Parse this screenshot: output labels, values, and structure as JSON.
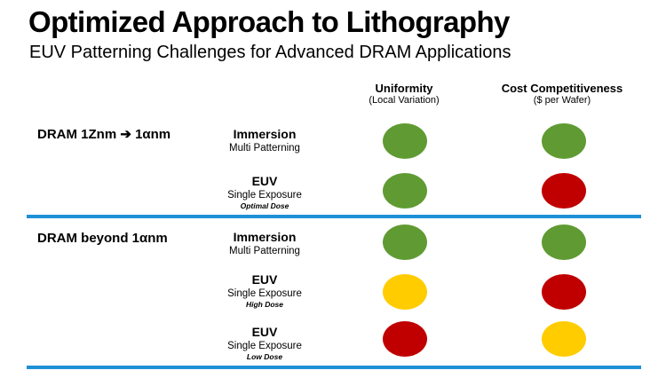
{
  "title": "Optimized Approach to Lithography",
  "subtitle": "EUV Patterning Challenges for Advanced DRAM Applications",
  "columns": [
    {
      "label": "Uniformity",
      "sublabel": "(Local Variation)"
    },
    {
      "label": "Cost Competitiveness",
      "sublabel": "($ per Wafer)"
    }
  ],
  "groups": [
    {
      "label": "DRAM 1Znm ➔ 1αnm"
    },
    {
      "label": "DRAM beyond 1αnm"
    }
  ],
  "rows": [
    {
      "method": "Immersion",
      "detail": "Multi Patterning",
      "note": "",
      "uniformity": "green",
      "cost": "green"
    },
    {
      "method": "EUV",
      "detail": "Single Exposure",
      "note": "Optimal Dose",
      "uniformity": "green",
      "cost": "red"
    },
    {
      "method": "Immersion",
      "detail": "Multi Patterning",
      "note": "",
      "uniformity": "green",
      "cost": "green"
    },
    {
      "method": "EUV",
      "detail": "Single Exposure",
      "note": "High Dose",
      "uniformity": "yellow",
      "cost": "red"
    },
    {
      "method": "EUV",
      "detail": "Single Exposure",
      "note": "Low Dose",
      "uniformity": "red",
      "cost": "yellow"
    }
  ],
  "colors": {
    "green": "#5f9b32",
    "red": "#c00000",
    "yellow": "#ffcc00",
    "divider": "#1e90d6"
  }
}
